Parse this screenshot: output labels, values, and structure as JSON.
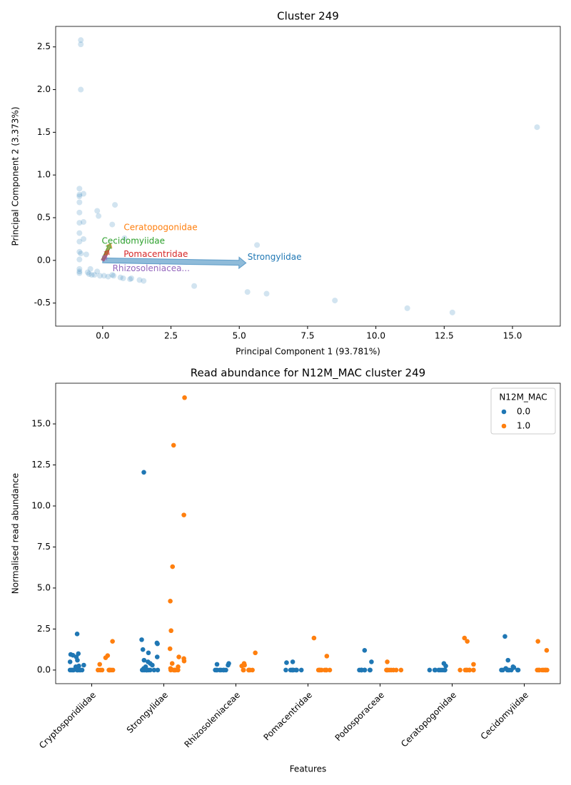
{
  "chart_data": [
    {
      "type": "biplot",
      "title": "Cluster 249",
      "xlabel": "Principal Component 1 (93.781%)",
      "ylabel": "Principal Component 2 (3.373%)",
      "color": "#1f77b4",
      "x": [
        -0.8,
        -0.8,
        -0.8,
        15.9,
        -0.85,
        -0.85,
        -0.7,
        -0.85,
        -0.85,
        0.45,
        -0.2,
        -0.85,
        -0.15,
        -0.7,
        -0.85,
        0.35,
        -0.85,
        -0.7,
        0.8,
        -0.85,
        5.65,
        -0.85,
        -0.8,
        -0.6,
        -0.85,
        -0.85,
        -0.85,
        -0.85,
        -0.55,
        -0.45,
        -0.5,
        -0.4,
        -0.3,
        -0.2,
        -0.1,
        0.05,
        0.2,
        0.35,
        0.4,
        0.65,
        0.75,
        1.0,
        1.05,
        1.35,
        1.5,
        3.35,
        5.3,
        6.0,
        8.5,
        11.15,
        12.8
      ],
      "y": [
        2.58,
        2.53,
        2.0,
        1.56,
        0.84,
        0.77,
        0.78,
        0.75,
        0.68,
        0.65,
        0.58,
        0.56,
        0.52,
        0.45,
        0.44,
        0.42,
        0.32,
        0.25,
        0.26,
        0.22,
        0.18,
        0.1,
        0.08,
        0.07,
        0.01,
        -0.1,
        -0.13,
        -0.15,
        -0.14,
        -0.1,
        -0.16,
        -0.17,
        -0.17,
        -0.13,
        -0.18,
        -0.18,
        -0.19,
        -0.17,
        -0.18,
        -0.2,
        -0.21,
        -0.22,
        -0.21,
        -0.23,
        -0.24,
        -0.3,
        -0.37,
        -0.39,
        -0.47,
        -0.56,
        -0.61
      ],
      "arrows": [
        {
          "name": "Strongylidae",
          "color": "#1f77b4",
          "x": 5.25,
          "y": -0.03
        },
        {
          "name": "Ceratopogonidae",
          "color": "#ff7f0e",
          "x": 0.3,
          "y": 0.2
        },
        {
          "name": "Cecidomyiidae",
          "color": "#2ca02c",
          "x": 0.28,
          "y": 0.19
        },
        {
          "name": "Pomacentridae",
          "color": "#d62728",
          "x": 0.22,
          "y": 0.12
        },
        {
          "name": "Rhizosoleniacea...",
          "color": "#9467bd",
          "x": 0.15,
          "y": 0.06
        }
      ],
      "xlim": [
        -1.72,
        16.75
      ],
      "ylim": [
        -0.77,
        2.74
      ],
      "xticks": [
        {
          "value": 0,
          "label": "0.0"
        },
        2.5,
        {
          "value": 5,
          "label": "5.0"
        },
        7.5,
        {
          "value": 10,
          "label": "10.0"
        },
        12.5,
        {
          "value": 15,
          "label": "15.0"
        }
      ],
      "yticks": [
        -0.5,
        {
          "value": 0,
          "label": "0.0"
        },
        0.5,
        {
          "value": 1,
          "label": "1.0"
        },
        1.5,
        {
          "value": 2,
          "label": "2.0"
        },
        2.5
      ]
    },
    {
      "type": "strip",
      "title": "Read abundance for N12M_MAC cluster 249",
      "xlabel": "Features",
      "ylabel": "Normalised read abundance",
      "categories": [
        "Cryptosporidiidae",
        "Strongylidae",
        "Rhizosoleniaceae",
        "Pomacentridae",
        "Podosporaceae",
        "Ceratopogonidae",
        "Cecidomyiidae"
      ],
      "legend_title": "N12M_MAC",
      "legend": "upper right",
      "series": [
        {
          "name": "0.0",
          "color": "#1f77b4",
          "values": [
            [
              2.2,
              1.0,
              0.95,
              0.9,
              0.8,
              0.6,
              0.5,
              0.3,
              0.25,
              0.2,
              0,
              0,
              0,
              0,
              0,
              0,
              0,
              0,
              0,
              0
            ],
            [
              12.05,
              1.85,
              1.65,
              1.6,
              1.25,
              1.05,
              0.8,
              0.6,
              0.5,
              0.4,
              0.3,
              0.2,
              0.1,
              0,
              0,
              0,
              0,
              0,
              0,
              0,
              0,
              0,
              0
            ],
            [
              0.4,
              0.35,
              0.3,
              0,
              0,
              0,
              0,
              0,
              0,
              0,
              0
            ],
            [
              0.5,
              0.45,
              0,
              0,
              0,
              0,
              0,
              0,
              0,
              0
            ],
            [
              1.2,
              0.5,
              0,
              0,
              0,
              0,
              0,
              0,
              0,
              0
            ],
            [
              0.4,
              0.25,
              0,
              0,
              0,
              0,
              0,
              0,
              0,
              0
            ],
            [
              2.05,
              0.6,
              0.2,
              0.15,
              0.1,
              0,
              0,
              0,
              0,
              0,
              0,
              0,
              0
            ]
          ]
        },
        {
          "name": "1.0",
          "color": "#ff7f0e",
          "values": [
            [
              1.75,
              0.88,
              0.75,
              0.35,
              0,
              0,
              0,
              0,
              0,
              0,
              0,
              0
            ],
            [
              16.6,
              13.7,
              9.45,
              6.3,
              4.2,
              2.4,
              1.3,
              0.8,
              0.7,
              0.55,
              0.4,
              0.2,
              0.1,
              0,
              0,
              0,
              0,
              0,
              0
            ],
            [
              1.05,
              0.4,
              0.3,
              0.25,
              0,
              0,
              0,
              0,
              0,
              0
            ],
            [
              1.95,
              0.85,
              0,
              0,
              0,
              0,
              0,
              0,
              0,
              0
            ],
            [
              0.5,
              0,
              0,
              0,
              0,
              0,
              0,
              0,
              0
            ],
            [
              1.95,
              1.75,
              0.35,
              0,
              0,
              0,
              0,
              0,
              0,
              0,
              0
            ],
            [
              1.75,
              1.2,
              0,
              0,
              0,
              0,
              0,
              0,
              0,
              0
            ]
          ]
        }
      ],
      "ylim": [
        -0.83,
        17.48
      ],
      "yticks": [
        {
          "value": 0,
          "label": "0.0"
        },
        2.5,
        {
          "value": 5,
          "label": "5.0"
        },
        7.5,
        {
          "value": 10,
          "label": "10.0"
        },
        12.5,
        {
          "value": 15,
          "label": "15.0"
        }
      ]
    }
  ]
}
